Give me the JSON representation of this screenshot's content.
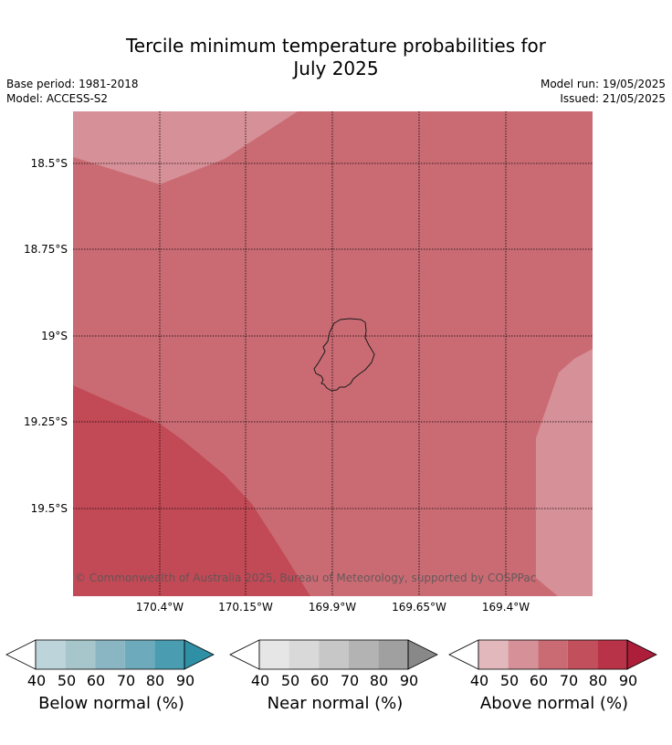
{
  "title_line1": "Tercile minimum temperature probabilities for",
  "title_line2": "July 2025",
  "base_period": "Base period: 1981-2018",
  "model": "Model: ACCESS-S2",
  "model_run": "Model run: 19/05/2025",
  "issued": "Issued: 21/05/2025",
  "lat_labels": [
    "18.5°S",
    "18.75°S",
    "19°S",
    "19.25°S",
    "19.5°S"
  ],
  "lon_labels": [
    "170.4°W",
    "170.15°W",
    "169.9°W",
    "169.65°W",
    "169.4°W"
  ],
  "copyright": "© Commonwealth of Australia 2025, Bureau of Meteorology, supported by COSPPac",
  "colorbars": [
    {
      "label": "Below normal (%)",
      "ticks": [
        "40",
        "50",
        "60",
        "70",
        "80",
        "90"
      ],
      "colors": [
        "#ffffff",
        "#bdd4db",
        "#a6c6cc",
        "#89b6c2",
        "#6dabbc",
        "#4a9db1",
        "#2f8fa5"
      ]
    },
    {
      "label": "Near normal (%)",
      "ticks": [
        "40",
        "50",
        "60",
        "70",
        "80",
        "90"
      ],
      "colors": [
        "#ffffff",
        "#e6e6e6",
        "#d9d9d9",
        "#c7c7c7",
        "#b3b3b3",
        "#a0a0a0",
        "#888888"
      ]
    },
    {
      "label": "Above normal (%)",
      "ticks": [
        "40",
        "50",
        "60",
        "70",
        "80",
        "90"
      ],
      "colors": [
        "#ffffff",
        "#e2b8bd",
        "#d69097",
        "#ca6b74",
        "#c2505c",
        "#b93348",
        "#ad1e3a"
      ]
    }
  ],
  "map_colors": {
    "prob_50_60": "#d69097",
    "prob_60_70": "#ca6b74",
    "prob_70_80": "#c24a56"
  }
}
